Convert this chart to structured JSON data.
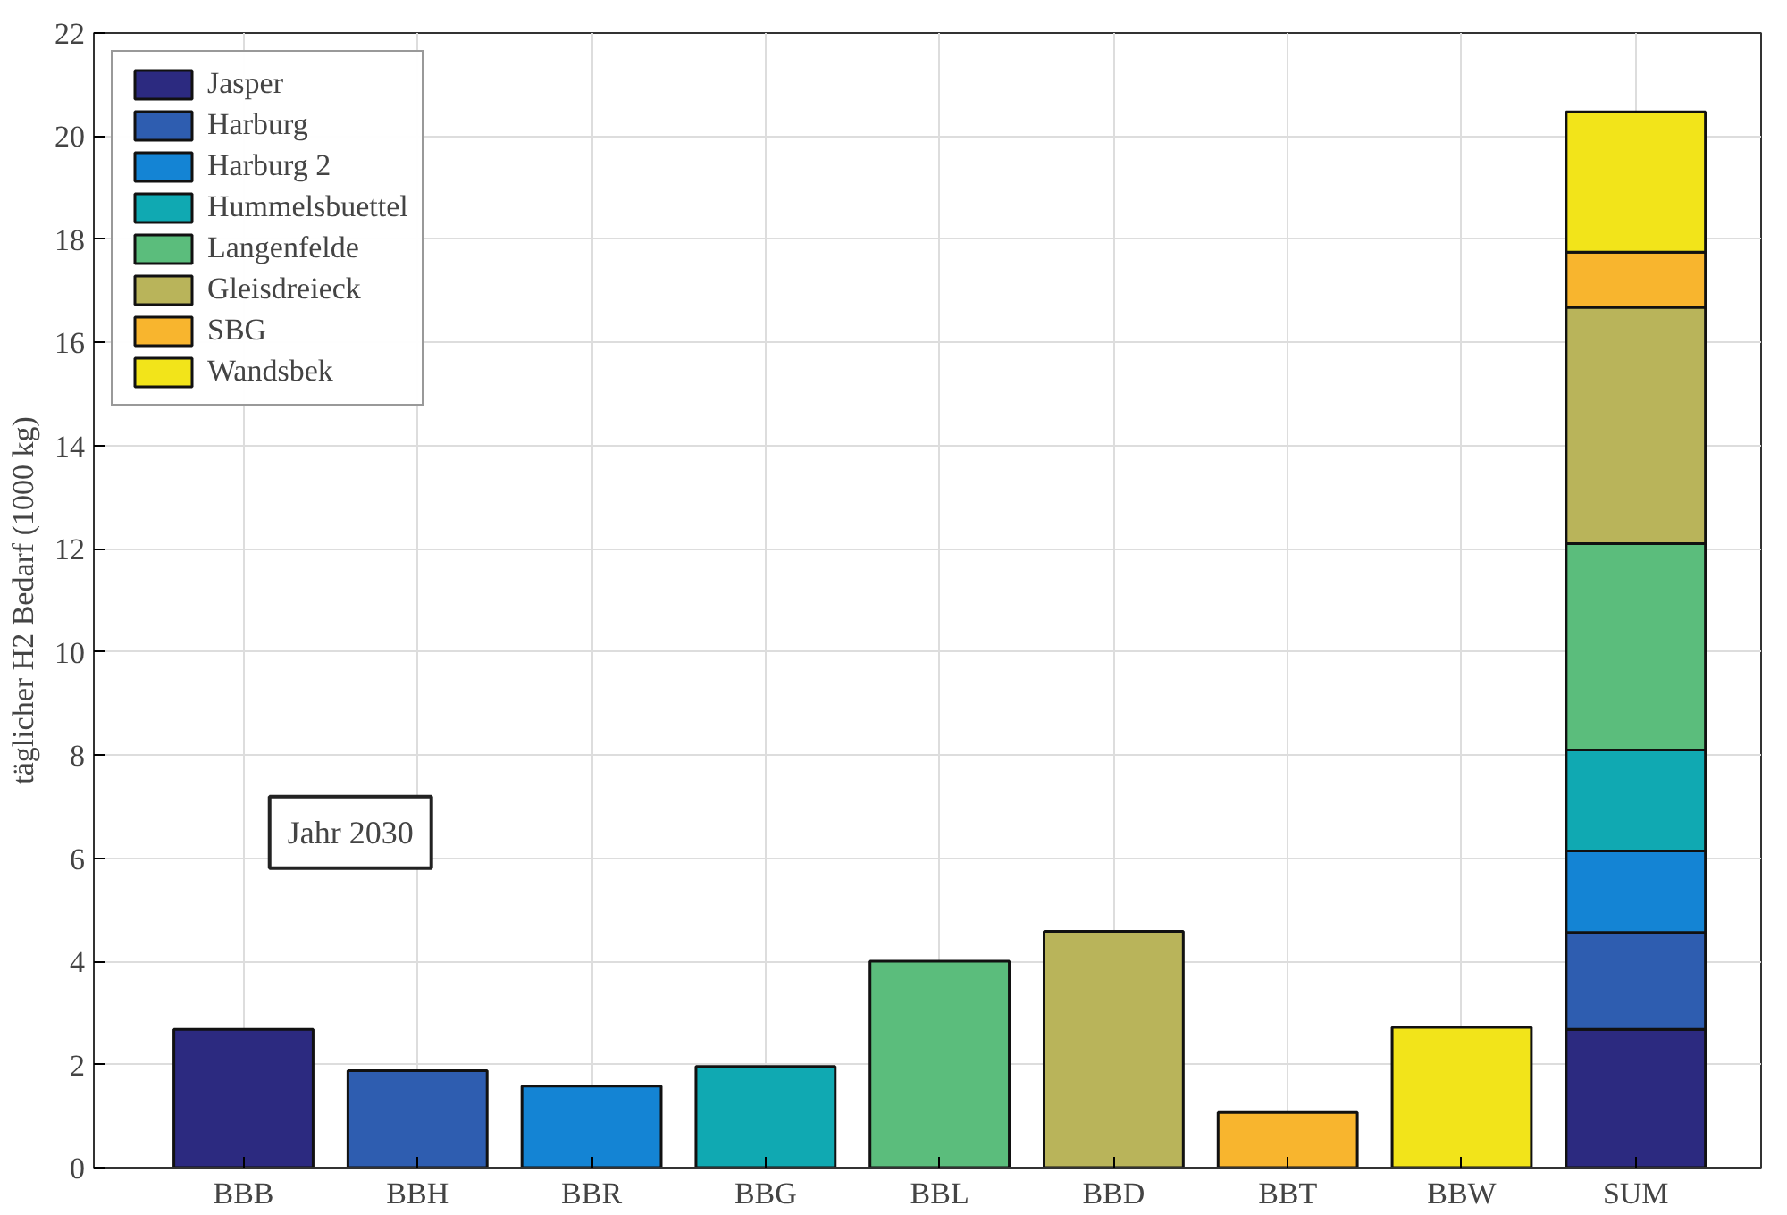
{
  "chart_data": {
    "type": "bar",
    "stacked": true,
    "categories": [
      "BBB",
      "BBH",
      "BBR",
      "BBG",
      "BBL",
      "BBD",
      "BBT",
      "BBW",
      "SUM"
    ],
    "ylabel": "täglicher H2 Bedarf (1000 kg)",
    "ylim": [
      0,
      22
    ],
    "yticks": [
      0,
      2,
      4,
      6,
      8,
      10,
      12,
      14,
      16,
      18,
      20,
      22
    ],
    "grid": true,
    "legend": "top left",
    "annotations": [
      "Jahr 2030"
    ],
    "series": [
      {
        "name": "Jasper",
        "color": "#2c2a80",
        "values": [
          2.68,
          null,
          null,
          null,
          null,
          null,
          null,
          null,
          2.68
        ]
      },
      {
        "name": "Harburg",
        "color": "#2e5db0",
        "values": [
          null,
          1.88,
          null,
          null,
          null,
          null,
          null,
          null,
          1.88
        ]
      },
      {
        "name": "Harburg 2",
        "color": "#1484d4",
        "values": [
          null,
          null,
          1.58,
          null,
          null,
          null,
          null,
          null,
          1.58
        ]
      },
      {
        "name": "Hummelsbuettel",
        "color": "#10a9b2",
        "values": [
          null,
          null,
          null,
          1.96,
          null,
          null,
          null,
          null,
          1.96
        ]
      },
      {
        "name": "Langenfelde",
        "color": "#5bbd7c",
        "values": [
          null,
          null,
          null,
          null,
          4.0,
          null,
          null,
          null,
          4.0
        ]
      },
      {
        "name": "Gleisdreieck",
        "color": "#b9b45a",
        "values": [
          null,
          null,
          null,
          null,
          null,
          4.58,
          null,
          null,
          4.58
        ]
      },
      {
        "name": "SBG",
        "color": "#f8b52e",
        "values": [
          null,
          null,
          null,
          null,
          null,
          null,
          1.07,
          null,
          1.07
        ]
      },
      {
        "name": "Wandsbek",
        "color": "#f2e41a",
        "values": [
          null,
          null,
          null,
          null,
          null,
          null,
          null,
          2.72,
          2.72
        ]
      }
    ]
  }
}
